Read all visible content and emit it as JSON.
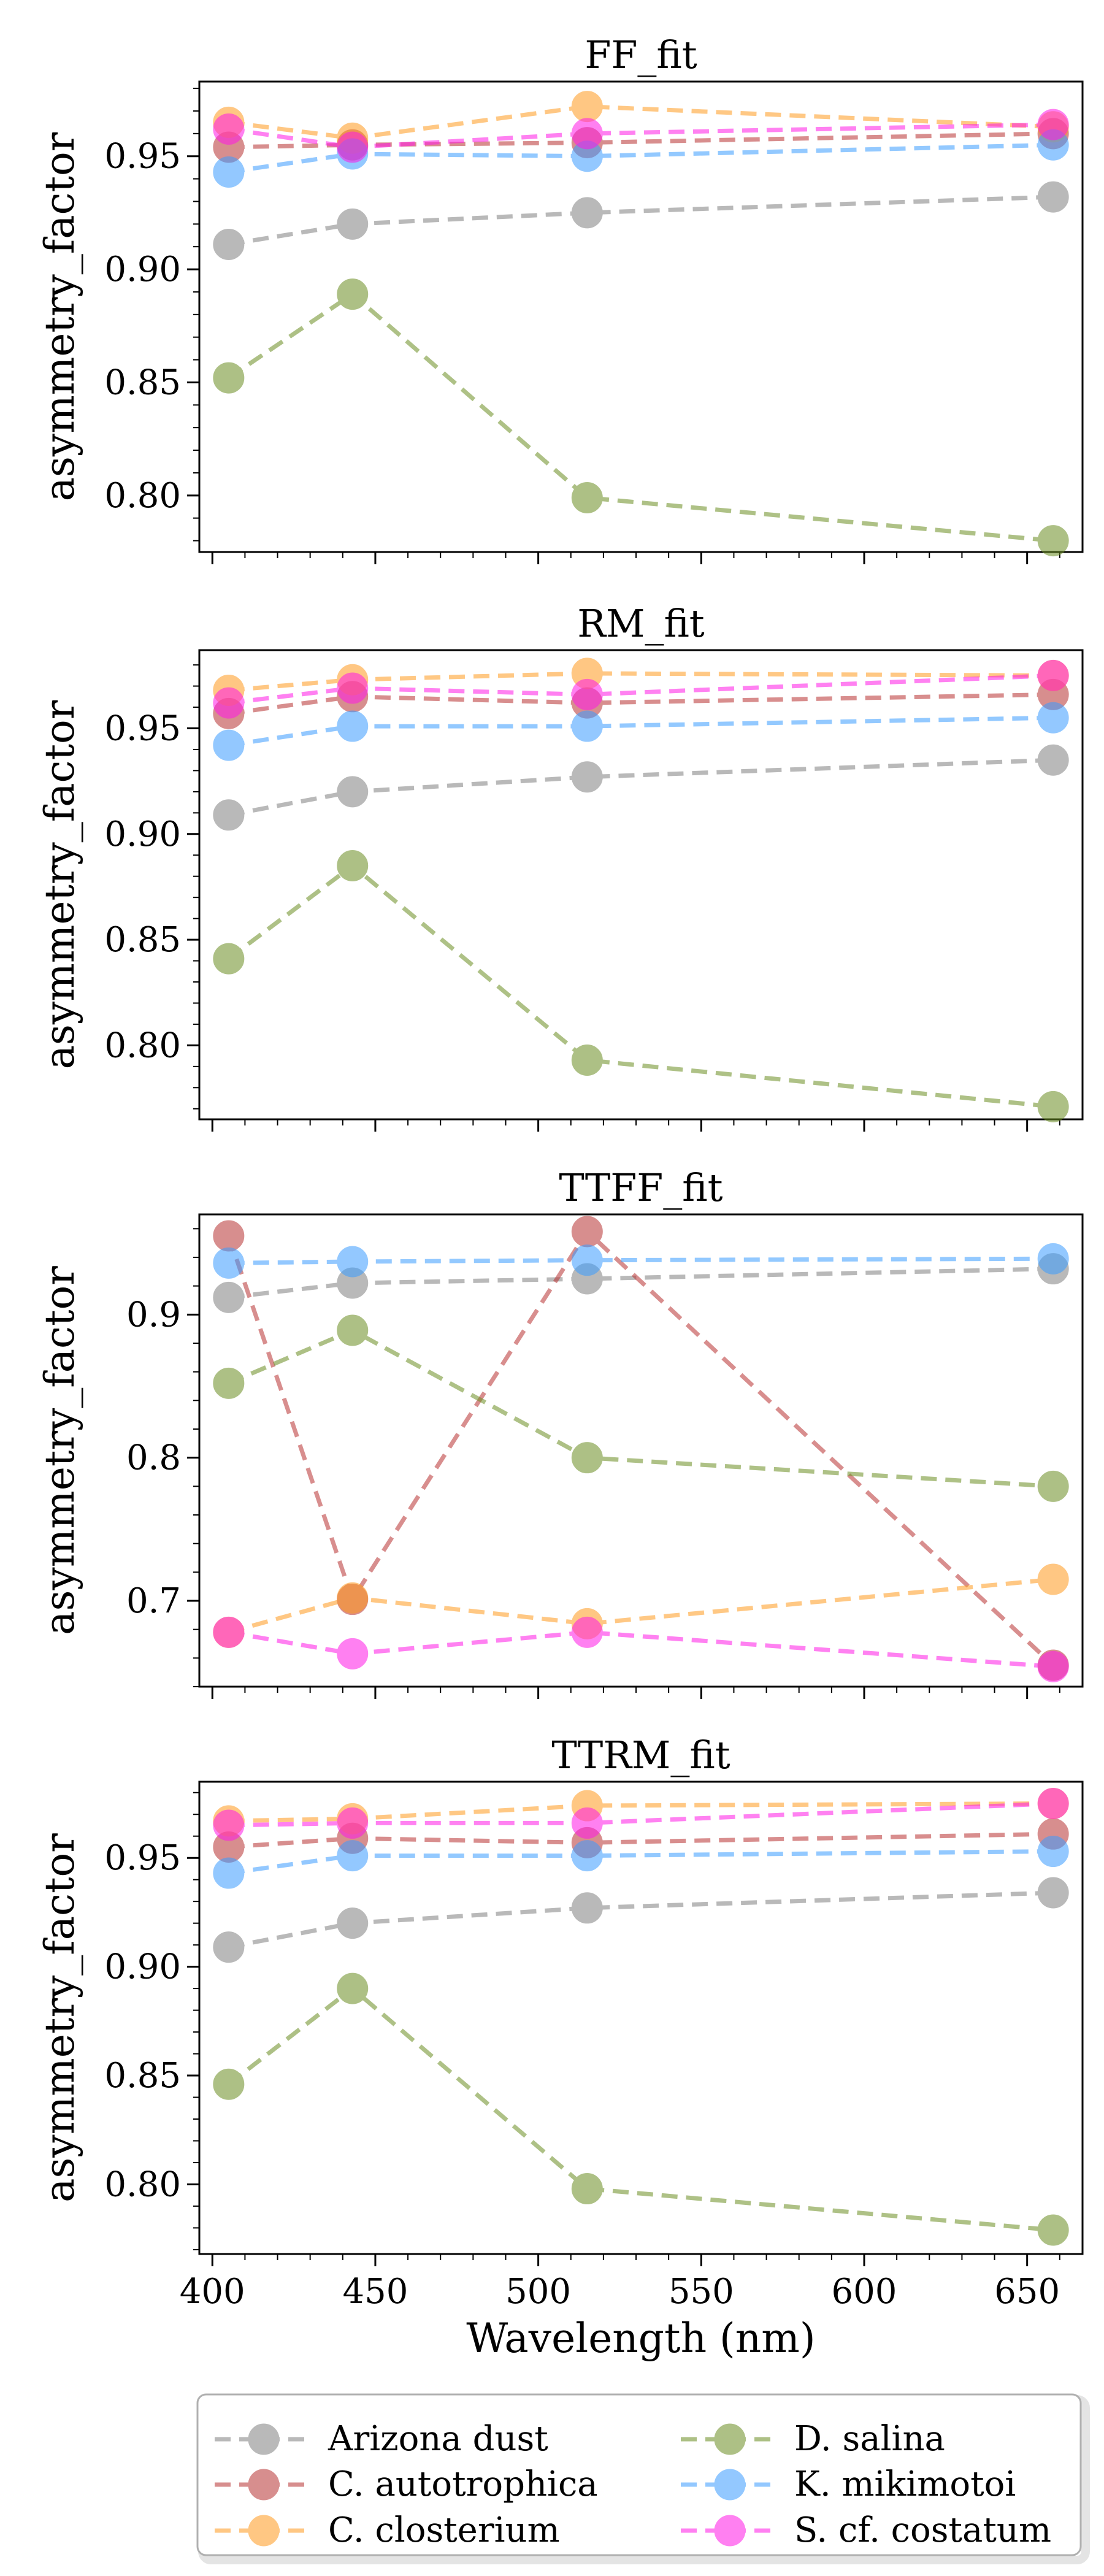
{
  "colors": {
    "Arizona dust": "#808080",
    "C. autotrophica": "#b83232",
    "C. closterium": "#ff9a1f",
    "D. salina": "#6b8e23",
    "K. mikimotoi": "#3b9cff",
    "S. cf. costatum": "#ff19e6"
  },
  "figure": {
    "xlabel": "Wavelength (nm)",
    "xticks": [
      400,
      450,
      500,
      550,
      600,
      650
    ],
    "xlim": [
      396,
      667
    ]
  },
  "chart_data": [
    {
      "type": "line",
      "title": "FF_fit",
      "ylabel": "asymmetry_factor",
      "xlabel": "Wavelength (nm)",
      "x": [
        405,
        443,
        515,
        658
      ],
      "ylim": [
        0.775,
        0.983
      ],
      "yticks": [
        "0.80",
        "0.85",
        "0.90",
        "0.95"
      ],
      "ytick_values": [
        0.8,
        0.85,
        0.9,
        0.95
      ],
      "series": [
        {
          "name": "Arizona dust",
          "values": [
            0.911,
            0.92,
            0.925,
            0.932
          ]
        },
        {
          "name": "C. autotrophica",
          "values": [
            0.954,
            0.955,
            0.956,
            0.96
          ]
        },
        {
          "name": "C. closterium",
          "values": [
            0.965,
            0.958,
            0.972,
            0.963
          ]
        },
        {
          "name": "D. salina",
          "values": [
            0.852,
            0.889,
            0.799,
            0.78
          ]
        },
        {
          "name": "K. mikimotoi",
          "values": [
            0.943,
            0.951,
            0.95,
            0.955
          ]
        },
        {
          "name": "S. cf. costatum",
          "values": [
            0.962,
            0.954,
            0.96,
            0.964
          ]
        }
      ]
    },
    {
      "type": "line",
      "title": "RM_fit",
      "ylabel": "asymmetry_factor",
      "xlabel": "Wavelength (nm)",
      "x": [
        405,
        443,
        515,
        658
      ],
      "ylim": [
        0.765,
        0.987
      ],
      "yticks": [
        "0.80",
        "0.85",
        "0.90",
        "0.95"
      ],
      "ytick_values": [
        0.8,
        0.85,
        0.9,
        0.95
      ],
      "series": [
        {
          "name": "Arizona dust",
          "values": [
            0.909,
            0.92,
            0.927,
            0.935
          ]
        },
        {
          "name": "C. autotrophica",
          "values": [
            0.957,
            0.965,
            0.962,
            0.966
          ]
        },
        {
          "name": "C. closterium",
          "values": [
            0.968,
            0.973,
            0.976,
            0.975
          ]
        },
        {
          "name": "D. salina",
          "values": [
            0.841,
            0.885,
            0.793,
            0.771
          ]
        },
        {
          "name": "K. mikimotoi",
          "values": [
            0.942,
            0.951,
            0.951,
            0.955
          ]
        },
        {
          "name": "S. cf. costatum",
          "values": [
            0.962,
            0.969,
            0.966,
            0.975
          ]
        }
      ]
    },
    {
      "type": "line",
      "title": "TTFF_fit",
      "ylabel": "asymmetry_factor",
      "xlabel": "Wavelength (nm)",
      "x": [
        405,
        443,
        515,
        658
      ],
      "ylim": [
        0.64,
        0.97
      ],
      "yticks": [
        "0.7",
        "0.8",
        "0.9"
      ],
      "ytick_values": [
        0.7,
        0.8,
        0.9
      ],
      "series": [
        {
          "name": "Arizona dust",
          "values": [
            0.912,
            0.922,
            0.925,
            0.932
          ]
        },
        {
          "name": "C. autotrophica",
          "values": [
            0.955,
            0.701,
            0.958,
            0.655
          ]
        },
        {
          "name": "C. closterium",
          "values": [
            0.678,
            0.702,
            0.684,
            0.715
          ]
        },
        {
          "name": "D. salina",
          "values": [
            0.852,
            0.889,
            0.8,
            0.78
          ]
        },
        {
          "name": "K. mikimotoi",
          "values": [
            0.936,
            0.937,
            0.938,
            0.939
          ]
        },
        {
          "name": "S. cf. costatum",
          "values": [
            0.678,
            0.663,
            0.678,
            0.654
          ]
        }
      ]
    },
    {
      "type": "line",
      "title": "TTRM_fit",
      "ylabel": "asymmetry_factor",
      "xlabel": "Wavelength (nm)",
      "x": [
        405,
        443,
        515,
        658
      ],
      "ylim": [
        0.768,
        0.985
      ],
      "yticks": [
        "0.80",
        "0.85",
        "0.90",
        "0.95"
      ],
      "ytick_values": [
        0.8,
        0.85,
        0.9,
        0.95
      ],
      "series": [
        {
          "name": "Arizona dust",
          "values": [
            0.909,
            0.92,
            0.927,
            0.934
          ]
        },
        {
          "name": "C. autotrophica",
          "values": [
            0.955,
            0.959,
            0.957,
            0.961
          ]
        },
        {
          "name": "C. closterium",
          "values": [
            0.967,
            0.968,
            0.974,
            0.975
          ]
        },
        {
          "name": "D. salina",
          "values": [
            0.846,
            0.89,
            0.798,
            0.779
          ]
        },
        {
          "name": "K. mikimotoi",
          "values": [
            0.943,
            0.951,
            0.951,
            0.953
          ]
        },
        {
          "name": "S. cf. costatum",
          "values": [
            0.965,
            0.966,
            0.966,
            0.975
          ]
        }
      ]
    }
  ],
  "legend": {
    "location": "below plots",
    "columns": 2,
    "entries": [
      "Arizona dust",
      "C. autotrophica",
      "C. closterium",
      "D. salina",
      "K. mikimotoi",
      "S. cf. costatum"
    ]
  }
}
